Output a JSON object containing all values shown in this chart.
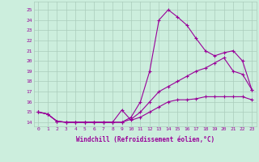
{
  "xlabel": "Windchill (Refroidissement éolien,°C)",
  "background_color": "#cceedd",
  "grid_color": "#aaccbb",
  "line_color": "#990099",
  "x_ticks": [
    0,
    1,
    2,
    3,
    4,
    5,
    6,
    7,
    8,
    9,
    10,
    11,
    12,
    13,
    14,
    15,
    16,
    17,
    18,
    19,
    20,
    21,
    22,
    23
  ],
  "y_ticks": [
    14,
    15,
    16,
    17,
    18,
    19,
    20,
    21,
    22,
    23,
    24,
    25
  ],
  "ylim": [
    13.6,
    25.8
  ],
  "xlim": [
    -0.5,
    23.5
  ],
  "line1_x": [
    0,
    1,
    2,
    3,
    4,
    5,
    6,
    7,
    8,
    9,
    10,
    11,
    12,
    13,
    14,
    15,
    16,
    17,
    18,
    19,
    20,
    21,
    22,
    23
  ],
  "line1_y": [
    15.0,
    14.8,
    14.1,
    14.0,
    14.0,
    14.0,
    14.0,
    14.0,
    14.0,
    14.0,
    14.5,
    16.0,
    19.0,
    24.0,
    25.0,
    24.3,
    23.5,
    22.2,
    21.0,
    20.5,
    20.8,
    21.0,
    20.0,
    17.2
  ],
  "line2_x": [
    0,
    1,
    2,
    3,
    4,
    5,
    6,
    7,
    8,
    9,
    10,
    11,
    12,
    13,
    14,
    15,
    16,
    17,
    18,
    19,
    20,
    21,
    22,
    23
  ],
  "line2_y": [
    15.0,
    14.8,
    14.1,
    14.0,
    14.0,
    14.0,
    14.0,
    14.0,
    14.0,
    14.0,
    14.3,
    15.0,
    16.0,
    17.0,
    17.5,
    18.0,
    18.5,
    19.0,
    19.3,
    19.8,
    20.3,
    19.0,
    18.7,
    17.2
  ],
  "line3_x": [
    0,
    1,
    2,
    3,
    4,
    5,
    6,
    7,
    8,
    9,
    10,
    11,
    12,
    13,
    14,
    15,
    16,
    17,
    18,
    19,
    20,
    21,
    22,
    23
  ],
  "line3_y": [
    15.0,
    14.8,
    14.1,
    14.0,
    14.0,
    14.0,
    14.0,
    14.0,
    14.0,
    15.2,
    14.2,
    14.5,
    15.0,
    15.5,
    16.0,
    16.2,
    16.2,
    16.3,
    16.5,
    16.5,
    16.5,
    16.5,
    16.5,
    16.2
  ]
}
